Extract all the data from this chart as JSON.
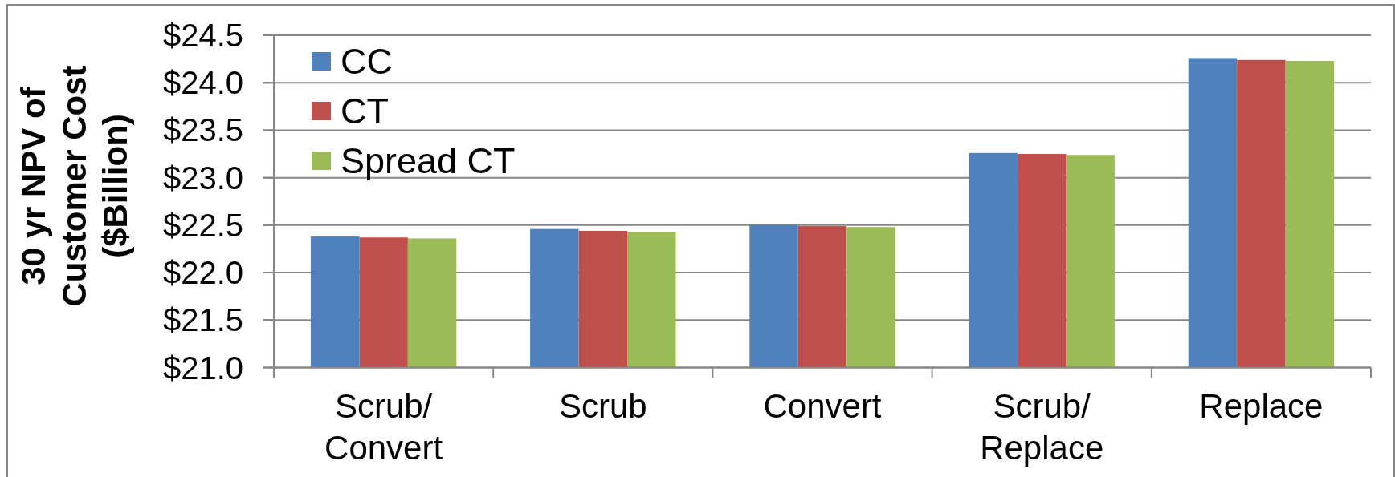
{
  "chart_data": {
    "type": "bar",
    "ylabel": "30 yr NPV of Customer Cost ($Billion)",
    "categories": [
      "Scrub/ Convert",
      "Scrub",
      "Convert",
      "Scrub/ Replace",
      "Replace"
    ],
    "series": [
      {
        "name": "CC",
        "color": "#4f81bd",
        "values": [
          22.38,
          22.46,
          22.5,
          23.26,
          24.26
        ]
      },
      {
        "name": "CT",
        "color": "#c0504d",
        "values": [
          22.37,
          22.44,
          22.49,
          23.25,
          24.24
        ]
      },
      {
        "name": "Spread CT",
        "color": "#9bbb59",
        "values": [
          22.36,
          22.43,
          22.48,
          23.24,
          24.23
        ]
      }
    ],
    "ylim": [
      21,
      24.5
    ],
    "yticks": [
      {
        "value": 21,
        "label": "$21.0"
      },
      {
        "value": 21.5,
        "label": "$21.5"
      },
      {
        "value": 22,
        "label": "$22.0"
      },
      {
        "value": 22.5,
        "label": "$22.5"
      },
      {
        "value": 23,
        "label": "$23.0"
      },
      {
        "value": 23.5,
        "label": "$23.5"
      },
      {
        "value": 24,
        "label": "$24.0"
      },
      {
        "value": 24.5,
        "label": "$24.5"
      }
    ],
    "grid": "y",
    "legend": "top left"
  }
}
